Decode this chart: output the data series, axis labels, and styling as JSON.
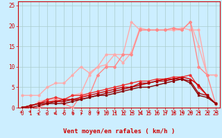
{
  "background_color": "#cceeff",
  "grid_color": "#aacccc",
  "xlabel": "Vent moyen/en rafales ( km/h )",
  "xlabel_color": "#cc0000",
  "xlim": [
    -0.5,
    23.5
  ],
  "ylim": [
    0,
    26
  ],
  "yticks": [
    0,
    5,
    10,
    15,
    20,
    25
  ],
  "xticks": [
    0,
    1,
    2,
    3,
    4,
    5,
    6,
    7,
    8,
    9,
    10,
    11,
    12,
    13,
    14,
    15,
    16,
    17,
    18,
    19,
    20,
    21,
    22,
    23
  ],
  "lines": [
    {
      "x": [
        0,
        1,
        2,
        3,
        4,
        5,
        6,
        7,
        8,
        9,
        10,
        11,
        12,
        13,
        14,
        15,
        16,
        17,
        18,
        19,
        20,
        21,
        22,
        23
      ],
      "y": [
        3.0,
        3.0,
        3.0,
        5.0,
        6.0,
        6.0,
        8.0,
        10.0,
        8.5,
        10.0,
        13.0,
        13.0,
        11.0,
        13.5,
        19.5,
        19.0,
        19.0,
        19.0,
        19.0,
        19.5,
        19.0,
        19.0,
        8.0,
        8.0
      ],
      "color": "#ffaaaa",
      "linewidth": 1.0,
      "marker": "o",
      "markersize": 2.0
    },
    {
      "x": [
        0,
        1,
        2,
        3,
        4,
        5,
        6,
        7,
        8,
        9,
        10,
        11,
        12,
        13,
        14,
        15,
        16,
        17,
        18,
        19,
        20,
        21,
        22,
        23
      ],
      "y": [
        0,
        0,
        1.5,
        2.0,
        2.0,
        2.0,
        3.0,
        3.5,
        8.0,
        10.0,
        10.5,
        13.0,
        13.0,
        21.0,
        19.0,
        19.0,
        19.0,
        19.0,
        19.0,
        19.0,
        21.0,
        15.0,
        8.0,
        8.0
      ],
      "color": "#ffaaaa",
      "linewidth": 1.0,
      "marker": "o",
      "markersize": 2.0
    },
    {
      "x": [
        0,
        1,
        2,
        3,
        4,
        5,
        6,
        7,
        8,
        9,
        10,
        11,
        12,
        13,
        14,
        15,
        16,
        17,
        18,
        19,
        20,
        21,
        22,
        23
      ],
      "y": [
        0,
        0,
        0,
        1.0,
        2.0,
        1.0,
        0,
        3.0,
        3.0,
        8.0,
        10.0,
        10.0,
        13.0,
        13.0,
        19.0,
        19.0,
        19.0,
        19.0,
        19.5,
        19.0,
        21.0,
        10.0,
        8.0,
        1.0
      ],
      "color": "#ff8888",
      "linewidth": 1.0,
      "marker": "D",
      "markersize": 2.0
    },
    {
      "x": [
        0,
        1,
        2,
        3,
        4,
        5,
        6,
        7,
        8,
        9,
        10,
        11,
        12,
        13,
        14,
        15,
        16,
        17,
        18,
        19,
        20,
        21,
        22,
        23
      ],
      "y": [
        0,
        0.5,
        1.0,
        2.0,
        2.5,
        2.0,
        3.0,
        3.0,
        3.5,
        4.0,
        4.5,
        5.0,
        5.5,
        6.0,
        6.5,
        6.5,
        7.0,
        7.0,
        7.5,
        7.5,
        8.0,
        5.0,
        3.0,
        1.0
      ],
      "color": "#ee3333",
      "linewidth": 1.0,
      "marker": "o",
      "markersize": 2.0
    },
    {
      "x": [
        0,
        1,
        2,
        3,
        4,
        5,
        6,
        7,
        8,
        9,
        10,
        11,
        12,
        13,
        14,
        15,
        16,
        17,
        18,
        19,
        20,
        21,
        22,
        23
      ],
      "y": [
        0,
        0.5,
        1.0,
        1.5,
        1.5,
        2.0,
        2.0,
        2.5,
        3.0,
        3.5,
        4.0,
        4.5,
        5.0,
        5.0,
        6.0,
        6.0,
        6.5,
        7.0,
        7.0,
        7.5,
        7.0,
        5.5,
        3.0,
        1.0
      ],
      "color": "#cc0000",
      "linewidth": 1.0,
      "marker": "^",
      "markersize": 2.0
    },
    {
      "x": [
        0,
        1,
        2,
        3,
        4,
        5,
        6,
        7,
        8,
        9,
        10,
        11,
        12,
        13,
        14,
        15,
        16,
        17,
        18,
        19,
        20,
        21,
        22,
        23
      ],
      "y": [
        0,
        0.5,
        1.0,
        1.0,
        1.5,
        1.5,
        2.0,
        2.0,
        2.5,
        3.0,
        3.5,
        4.0,
        4.5,
        5.0,
        5.5,
        6.0,
        6.5,
        6.5,
        7.0,
        7.0,
        6.5,
        3.5,
        3.0,
        1.0
      ],
      "color": "#aa0000",
      "linewidth": 1.0,
      "marker": "v",
      "markersize": 2.0
    },
    {
      "x": [
        0,
        1,
        2,
        3,
        4,
        5,
        6,
        7,
        8,
        9,
        10,
        11,
        12,
        13,
        14,
        15,
        16,
        17,
        18,
        19,
        20,
        21,
        22,
        23
      ],
      "y": [
        0,
        0,
        0.5,
        1.0,
        1.0,
        1.0,
        1.5,
        2.0,
        2.5,
        3.0,
        3.0,
        3.5,
        4.0,
        4.5,
        5.0,
        5.0,
        5.5,
        6.0,
        6.5,
        7.0,
        6.0,
        3.0,
        2.5,
        1.0
      ],
      "color": "#880000",
      "linewidth": 1.0,
      "marker": "x",
      "markersize": 2.0
    }
  ],
  "wind_arrows": [
    [
      45,
      1
    ],
    [
      20,
      1
    ],
    [
      160,
      1
    ],
    [
      155,
      1
    ],
    [
      150,
      1
    ],
    [
      160,
      1
    ],
    [
      200,
      0
    ],
    [
      200,
      0
    ],
    [
      250,
      0
    ],
    [
      255,
      0
    ],
    [
      260,
      0
    ],
    [
      260,
      0
    ],
    [
      260,
      0
    ],
    [
      260,
      0
    ],
    [
      260,
      0
    ],
    [
      265,
      0
    ],
    [
      265,
      0
    ],
    [
      265,
      0
    ],
    [
      265,
      0
    ],
    [
      270,
      0
    ],
    [
      265,
      0
    ],
    [
      270,
      0
    ],
    [
      270,
      0
    ],
    [
      270,
      0
    ]
  ],
  "tick_fontsize": 5.5,
  "label_fontsize": 6.5
}
